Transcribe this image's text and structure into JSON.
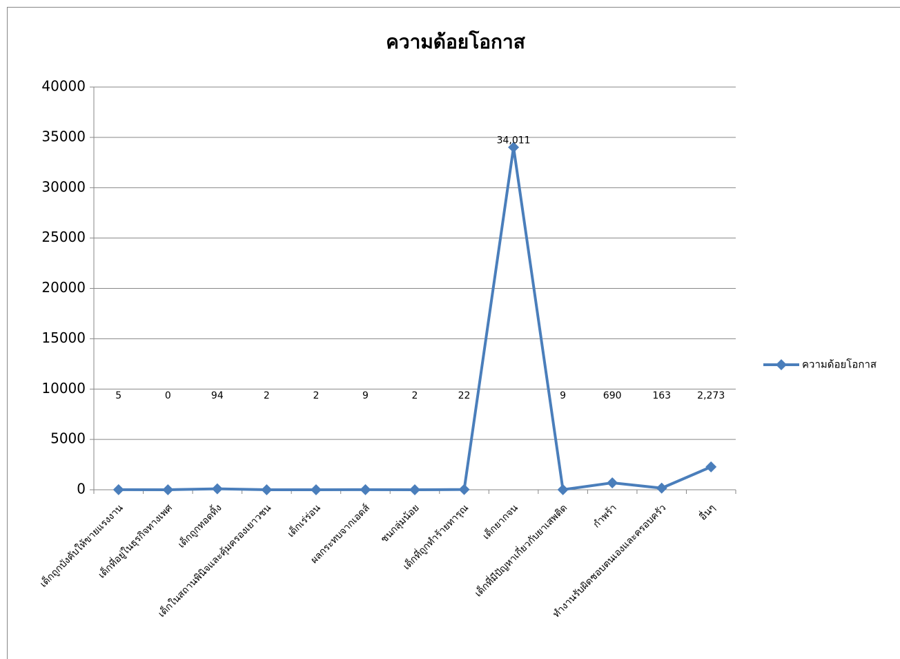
{
  "chart_data": {
    "type": "line",
    "title": "ความด้อยโอกาส",
    "categories": [
      "เด็กถูกบังคับให้ขายแรงงาน",
      "เด็กที่อยู่ในธุรกิจทางเพศ",
      "เด็กถูกทอดทิ้ง",
      "เด็กในสถานพินิจและคุ้มครองเยาวชน",
      "เด็กเร่ร่อน",
      "ผลกระทบจากเอดส์",
      "ชนกลุ่มน้อย",
      "เด็กที่ถูกทำร้ายทารุณ",
      "เด็กยากจน",
      "เด็กที่มีปัญหาเกี่ยวกับยาเสพติด",
      "กำพร้า",
      "ทำงานรับผิดชอบตนเองและครอบครัว",
      "อื่นๆ"
    ],
    "series": [
      {
        "name": "ความด้อยโอกาส",
        "color": "#4a7ebb",
        "values": [
          5,
          0,
          94,
          2,
          2,
          9,
          2,
          22,
          34011,
          9,
          690,
          163,
          2273
        ],
        "value_labels": [
          "5",
          "0",
          "94",
          "2",
          "2",
          "9",
          "2",
          "22",
          "34,011",
          "9",
          "690",
          "163",
          "2,273"
        ]
      }
    ],
    "ylim": [
      0,
      40000
    ],
    "yticks": [
      0,
      5000,
      10000,
      15000,
      20000,
      25000,
      30000,
      35000,
      40000
    ],
    "grid": true,
    "legend": "right"
  }
}
